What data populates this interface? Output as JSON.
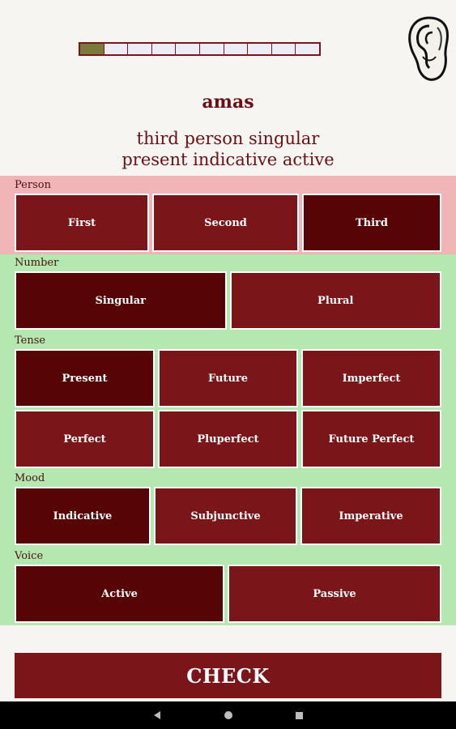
{
  "progress": {
    "total_segments": 10,
    "filled_segments": 1
  },
  "header": {
    "word": "amas",
    "description_line1": "third person singular",
    "description_line2": "present indicative active"
  },
  "groups": {
    "person": {
      "label": "Person",
      "options": [
        "First",
        "Second",
        "Third"
      ],
      "selected": "Third"
    },
    "number": {
      "label": "Number",
      "options": [
        "Singular",
        "Plural"
      ],
      "selected": "Singular"
    },
    "tense": {
      "label": "Tense",
      "options_row1": [
        "Present",
        "Future",
        "Imperfect"
      ],
      "options_row2": [
        "Perfect",
        "Pluperfect",
        "Future Perfect"
      ],
      "selected": "Present"
    },
    "mood": {
      "label": "Mood",
      "options": [
        "Indicative",
        "Subjunctive",
        "Imperative"
      ],
      "selected": "Indicative"
    },
    "voice": {
      "label": "Voice",
      "options": [
        "Active",
        "Passive"
      ],
      "selected": "Active"
    }
  },
  "check_button": {
    "label": "CHECK"
  },
  "icons": {
    "audio": "ear-icon",
    "back": "back-icon",
    "home": "home-icon",
    "recents": "recents-icon"
  },
  "colors": {
    "accent": "#7a1519",
    "selected": "#560406",
    "person_bg": "#f2b5b7",
    "form_bg": "#b4e8b0",
    "progress_fill": "#7a7a3a"
  }
}
